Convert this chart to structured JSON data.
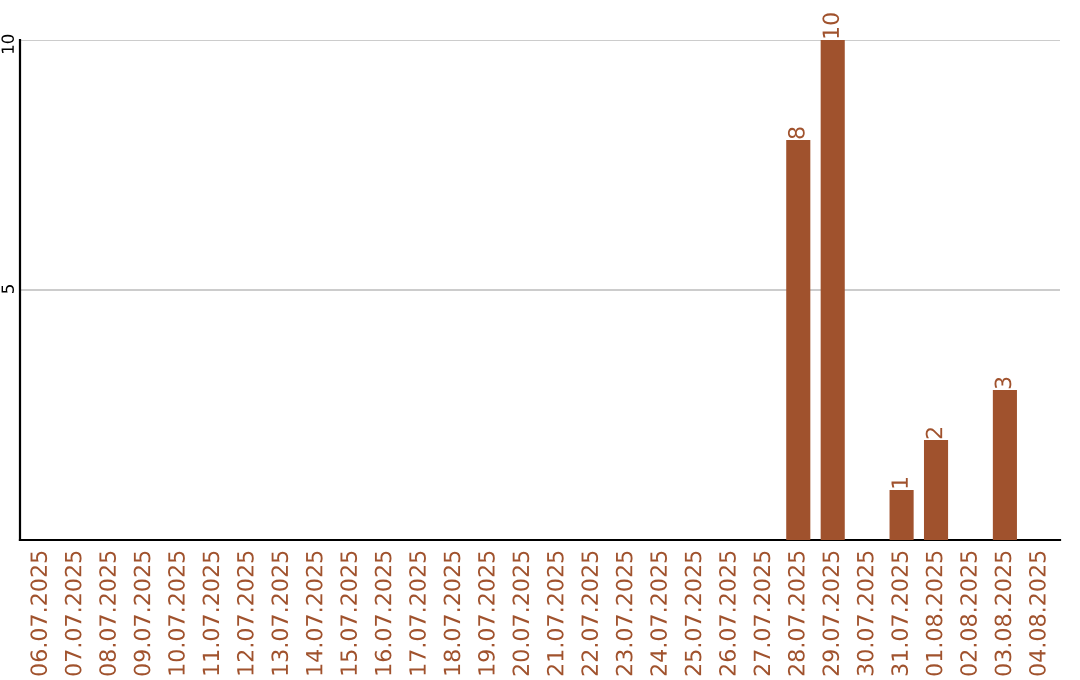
{
  "chart_data": {
    "type": "bar",
    "categories": [
      "06.07.2025",
      "07.07.2025",
      "08.07.2025",
      "09.07.2025",
      "10.07.2025",
      "11.07.2025",
      "12.07.2025",
      "13.07.2025",
      "14.07.2025",
      "15.07.2025",
      "16.07.2025",
      "17.07.2025",
      "18.07.2025",
      "19.07.2025",
      "20.07.2025",
      "21.07.2025",
      "22.07.2025",
      "23.07.2025",
      "24.07.2025",
      "25.07.2025",
      "26.07.2025",
      "27.07.2025",
      "28.07.2025",
      "29.07.2025",
      "30.07.2025",
      "31.07.2025",
      "01.08.2025",
      "02.08.2025",
      "03.08.2025",
      "04.08.2025"
    ],
    "values": [
      0,
      0,
      0,
      0,
      0,
      0,
      0,
      0,
      0,
      0,
      0,
      0,
      0,
      0,
      0,
      0,
      0,
      0,
      0,
      0,
      0,
      0,
      8,
      10,
      0,
      1,
      2,
      0,
      3,
      0
    ],
    "value_labels": [
      null,
      null,
      null,
      null,
      null,
      null,
      null,
      null,
      null,
      null,
      null,
      null,
      null,
      null,
      null,
      null,
      null,
      null,
      null,
      null,
      null,
      null,
      "8",
      "10",
      null,
      "1",
      "2",
      null,
      "3",
      null
    ],
    "color": "#a0522d",
    "ylim": [
      0,
      10
    ],
    "yticks": [
      5,
      10
    ],
    "grid": "y"
  }
}
